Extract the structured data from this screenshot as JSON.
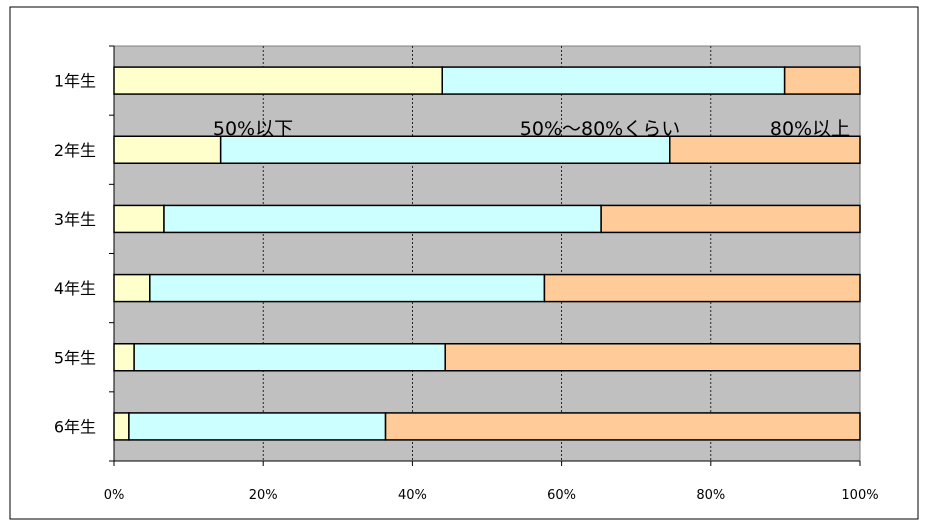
{
  "chart_data": {
    "type": "bar",
    "orientation": "horizontal",
    "stacked": "percent",
    "categories": [
      "1年生",
      "2年生",
      "3年生",
      "4年生",
      "5年生",
      "6年生"
    ],
    "series": [
      {
        "name": "50%以下",
        "color": "#FFFFCC",
        "values": [
          44,
          14.3,
          6.7,
          4.8,
          2.7,
          2.0
        ]
      },
      {
        "name": "50%～80%くらい",
        "color": "#CCFFFF",
        "values": [
          45.9,
          60.2,
          58.6,
          52.9,
          41.7,
          34.4
        ]
      },
      {
        "name": "80%以上",
        "color": "#FFCC99",
        "values": [
          10.1,
          25.5,
          34.7,
          42.3,
          55.6,
          63.6
        ]
      }
    ],
    "x_ticks": [
      "0%",
      "20%",
      "40%",
      "60%",
      "80%",
      "100%"
    ],
    "xlim": [
      0,
      100
    ],
    "grid": true,
    "plot_background": "#C0C0C0",
    "legend": "inline-labels-top"
  }
}
